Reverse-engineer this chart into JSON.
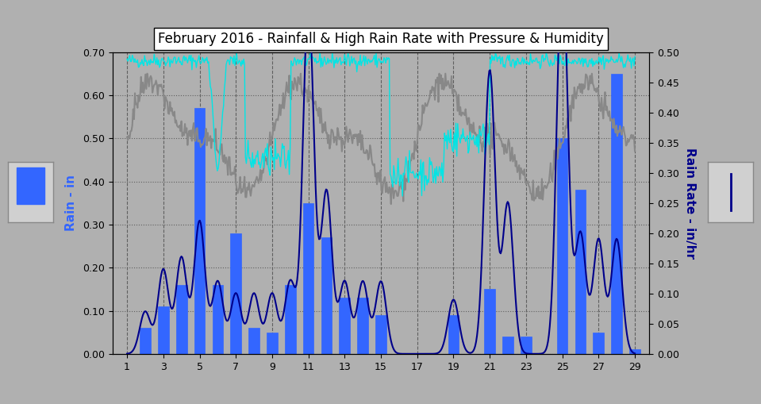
{
  "title": "February 2016 - Rainfall & High Rain Rate with Pressure & Humidity",
  "xlabel": "",
  "ylabel_left": "Rain - in",
  "ylabel_right": "Rain Rate - in/hr",
  "bg_color": "#b0b0b0",
  "plot_bg_color": "#b0b0b0",
  "ylim_left": [
    0.0,
    0.7
  ],
  "ylim_right": [
    0.0,
    0.5
  ],
  "yticks_left": [
    0.0,
    0.1,
    0.2,
    0.3,
    0.4,
    0.5,
    0.6,
    0.7
  ],
  "yticks_right": [
    0.0,
    0.05,
    0.1,
    0.15,
    0.2,
    0.25,
    0.3,
    0.35,
    0.4,
    0.45,
    0.5
  ],
  "days": [
    1,
    2,
    3,
    4,
    5,
    6,
    7,
    8,
    9,
    10,
    11,
    12,
    13,
    14,
    15,
    16,
    17,
    18,
    19,
    20,
    21,
    22,
    23,
    24,
    25,
    26,
    27,
    28,
    29
  ],
  "bar_color": "#3366ff",
  "bar_edgecolor": "#3366ff",
  "rainfall": [
    0.0,
    0.06,
    0.11,
    0.16,
    0.57,
    0.16,
    0.28,
    0.06,
    0.05,
    0.16,
    0.35,
    0.27,
    0.13,
    0.13,
    0.09,
    0.0,
    0.0,
    0.0,
    0.09,
    0.0,
    0.15,
    0.04,
    0.04,
    0.0,
    0.5,
    0.38,
    0.05,
    0.65,
    0.01
  ],
  "rain_rate_days": [
    1,
    2,
    3,
    4,
    5,
    6,
    7,
    8,
    9,
    10,
    11,
    12,
    13,
    14,
    15,
    16,
    17,
    18,
    19,
    20,
    21,
    22,
    23,
    24,
    25,
    26,
    27,
    28,
    29
  ],
  "rain_rate": [
    0.0,
    0.07,
    0.14,
    0.16,
    0.22,
    0.12,
    0.1,
    0.1,
    0.1,
    0.12,
    0.58,
    0.27,
    0.12,
    0.12,
    0.12,
    0.0,
    0.0,
    0.0,
    0.09,
    0.0,
    0.47,
    0.25,
    0.0,
    0.0,
    0.65,
    0.2,
    0.19,
    0.19,
    0.0
  ],
  "humidity_color": "#00e5e5",
  "pressure_color": "#888888",
  "line_color": "#00008b"
}
